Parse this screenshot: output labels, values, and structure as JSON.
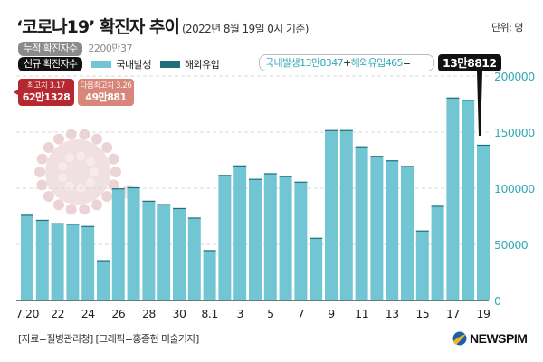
{
  "header": {
    "title": "‘코로나19’ 확진자 추이",
    "subtitle": "(2022년 8월 19일 0시 기준)",
    "unit": "단위: 명"
  },
  "legend": {
    "cumulative_label": "누적 확진자수",
    "cumulative_value": "2200만37",
    "new_label": "신규 확진자수",
    "domestic_label": "국내발생",
    "overseas_label": "해외유입",
    "domestic_color": "#72c5d3",
    "overseas_color": "#1f6e7a"
  },
  "today": {
    "formula_domestic": "국내발생13만8347",
    "formula_plus": "+",
    "formula_overseas": "해외유입465",
    "formula_equals": "=",
    "total": "13만8812"
  },
  "peaks": [
    {
      "label": "최고치 3.17",
      "value": "62만1328",
      "color": "#b52830"
    },
    {
      "label": "다음최고치 3.26",
      "value": "49만881",
      "color": "#d9867a"
    }
  ],
  "footer": {
    "source": "[자료=질병관리청] [그래픽=홍종현 미술기자]",
    "logo": "NEWSPIM"
  },
  "chart_data": {
    "type": "bar",
    "title": "‘코로나19’ 확진자 추이",
    "xlabel": "",
    "ylabel": "",
    "ylim": [
      0,
      200000
    ],
    "yticks": [
      0,
      50000,
      100000,
      150000,
      200000
    ],
    "ytick_labels": [
      "0",
      "50000",
      "100000",
      "150000",
      "200000"
    ],
    "grid": true,
    "legend_position": "top-left",
    "categories": [
      "7.20",
      "7.21",
      "7.22",
      "7.23",
      "7.24",
      "7.25",
      "7.26",
      "7.27",
      "7.28",
      "7.29",
      "7.30",
      "7.31",
      "8.1",
      "8.2",
      "8.3",
      "8.4",
      "8.5",
      "8.6",
      "8.7",
      "8.8",
      "8.9",
      "8.10",
      "8.11",
      "8.12",
      "8.13",
      "8.14",
      "8.15",
      "8.16",
      "8.17",
      "8.18",
      "8.19"
    ],
    "xtick_labels": [
      "7.20",
      "22",
      "24",
      "26",
      "28",
      "30",
      "8.1",
      "3",
      "5",
      "7",
      "9",
      "11",
      "13",
      "15",
      "17",
      "19"
    ],
    "xtick_indices": [
      0,
      2,
      4,
      6,
      8,
      10,
      12,
      14,
      16,
      18,
      20,
      22,
      24,
      26,
      28,
      30
    ],
    "series": [
      {
        "name": "국내발생",
        "values": [
          76000,
          71500,
          68500,
          68000,
          66000,
          35500,
          99500,
          100500,
          88500,
          85500,
          82000,
          73500,
          44500,
          111500,
          120000,
          108000,
          113000,
          110500,
          105500,
          55500,
          151500,
          151500,
          137000,
          128500,
          124500,
          119500,
          62000,
          84000,
          180500,
          178500,
          138347
        ]
      },
      {
        "name": "해외유입",
        "values": [
          400,
          400,
          400,
          400,
          400,
          400,
          400,
          400,
          400,
          400,
          400,
          400,
          400,
          400,
          400,
          400,
          400,
          400,
          400,
          400,
          400,
          400,
          400,
          400,
          400,
          400,
          400,
          400,
          400,
          400,
          465
        ]
      }
    ]
  }
}
